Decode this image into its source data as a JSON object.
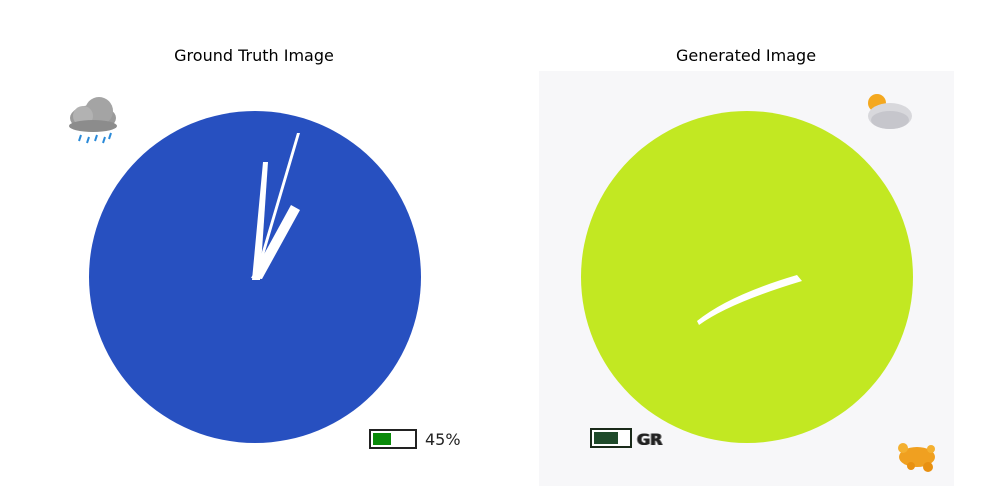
{
  "titles": {
    "left": "Ground Truth Image",
    "right": "Generated Image"
  },
  "left_panel": {
    "weather_icon": "rain-cloud-icon",
    "clock_face_color": "#2750c0",
    "hand_color": "#ffffff",
    "battery": {
      "level": 0.45,
      "label": "45%",
      "fill_color": "#0a8a0a"
    }
  },
  "right_panel": {
    "weather_icon": "partly-cloudy-sun-icon",
    "clock_face_color": "#c2e822",
    "hand_color": "#ffffff",
    "battery": {
      "level": 0.7,
      "label": "GR",
      "fill_color": "#1f4a2a"
    },
    "splash_icon": "orange-splash-icon"
  }
}
